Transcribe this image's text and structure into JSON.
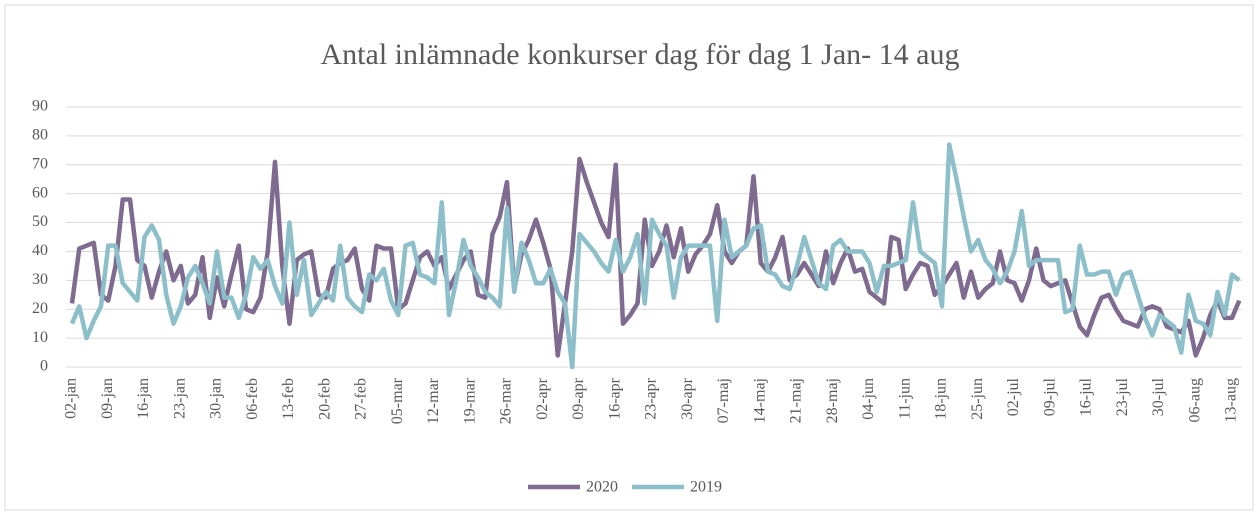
{
  "chart_data": {
    "type": "line",
    "title": "Antal inlämnade konkurser dag för dag 1 Jan- 14 aug",
    "categories": [
      "02-jan",
      null,
      null,
      null,
      null,
      "09-jan",
      null,
      null,
      null,
      null,
      "16-jan",
      null,
      null,
      null,
      null,
      "23-jan",
      null,
      null,
      null,
      null,
      "30-jan",
      null,
      null,
      null,
      null,
      "06-feb",
      null,
      null,
      null,
      null,
      "13-feb",
      null,
      null,
      null,
      null,
      "20-feb",
      null,
      null,
      null,
      null,
      "27-feb",
      null,
      null,
      null,
      null,
      "05-mar",
      null,
      null,
      null,
      null,
      "12-mar",
      null,
      null,
      null,
      null,
      "19-mar",
      null,
      null,
      null,
      null,
      "26-mar",
      null,
      null,
      null,
      null,
      "02-apr",
      null,
      null,
      null,
      null,
      "09-apr",
      null,
      null,
      null,
      null,
      "16-apr",
      null,
      null,
      null,
      null,
      "23-apr",
      null,
      null,
      null,
      null,
      "30-apr",
      null,
      null,
      null,
      null,
      "07-maj",
      null,
      null,
      null,
      null,
      "14-maj",
      null,
      null,
      null,
      null,
      "21-maj",
      null,
      null,
      null,
      null,
      "28-maj",
      null,
      null,
      null,
      null,
      "04-jun",
      null,
      null,
      null,
      null,
      "11-jun",
      null,
      null,
      null,
      null,
      "18-jun",
      null,
      null,
      null,
      null,
      "25-jun",
      null,
      null,
      null,
      null,
      "02-jul",
      null,
      null,
      null,
      null,
      "09-jul",
      null,
      null,
      null,
      null,
      "16-jul",
      null,
      null,
      null,
      null,
      "23-jul",
      null,
      null,
      null,
      null,
      "30-jul",
      null,
      null,
      null,
      null,
      "06-aug",
      null,
      null,
      null,
      null,
      "13-aug",
      null
    ],
    "series": [
      {
        "name": "2020",
        "color": "#7f6a90",
        "values": [
          22,
          41,
          42,
          43,
          25,
          23,
          35,
          58,
          58,
          37,
          35,
          24,
          33,
          40,
          30,
          35,
          22,
          25,
          38,
          17,
          31,
          21,
          32,
          42,
          20,
          19,
          24,
          40,
          71,
          35,
          15,
          37,
          39,
          40,
          25,
          24,
          34,
          36,
          37,
          41,
          27,
          23,
          42,
          41,
          41,
          20,
          22,
          30,
          38,
          40,
          35,
          38,
          27,
          32,
          37,
          40,
          25,
          24,
          46,
          52,
          64,
          27,
          39,
          44,
          51,
          43,
          34,
          4,
          22,
          40,
          72,
          64,
          57,
          50,
          45,
          70,
          15,
          18,
          22,
          51,
          35,
          40,
          49,
          38,
          48,
          33,
          39,
          42,
          46,
          56,
          40,
          36,
          40,
          42,
          66,
          36,
          33,
          38,
          45,
          30,
          32,
          36,
          32,
          28,
          40,
          29,
          36,
          41,
          33,
          34,
          26,
          24,
          22,
          45,
          44,
          27,
          32,
          36,
          35,
          25,
          28,
          32,
          36,
          24,
          33,
          24,
          27,
          29,
          40,
          30,
          29,
          23,
          30,
          41,
          30,
          28,
          29,
          30,
          22,
          14,
          11,
          18,
          24,
          25,
          20,
          16,
          15,
          14,
          20,
          21,
          20,
          14,
          13,
          12,
          16,
          4,
          10,
          18,
          23,
          17,
          17,
          23
        ]
      },
      {
        "name": "2019",
        "color": "#8cbfc9",
        "values": [
          15,
          21,
          10,
          16,
          21,
          42,
          42,
          29,
          26,
          23,
          45,
          49,
          44,
          25,
          15,
          21,
          31,
          35,
          29,
          22,
          40,
          24,
          24,
          17,
          25,
          38,
          34,
          37,
          28,
          22,
          50,
          25,
          37,
          18,
          22,
          26,
          23,
          42,
          24,
          21,
          19,
          32,
          30,
          34,
          23,
          18,
          42,
          43,
          32,
          31,
          29,
          57,
          18,
          30,
          44,
          35,
          31,
          26,
          24,
          21,
          55,
          26,
          43,
          37,
          29,
          29,
          34,
          26,
          22,
          0,
          46,
          43,
          40,
          36,
          33,
          44,
          33,
          38,
          46,
          22,
          51,
          46,
          42,
          24,
          38,
          42,
          42,
          42,
          42,
          16,
          51,
          38,
          40,
          42,
          48,
          49,
          33,
          32,
          28,
          27,
          35,
          45,
          37,
          29,
          27,
          42,
          44,
          40,
          40,
          40,
          36,
          26,
          35,
          35,
          36,
          37,
          57,
          40,
          38,
          36,
          21,
          77,
          65,
          52,
          40,
          44,
          37,
          34,
          29,
          33,
          40,
          54,
          35,
          37,
          37,
          37,
          37,
          19,
          20,
          42,
          32,
          32,
          33,
          33,
          25,
          32,
          33,
          25,
          17,
          11,
          18,
          16,
          14,
          5,
          25,
          16,
          15,
          11,
          26,
          18,
          32,
          30
        ]
      }
    ],
    "ylim": [
      0,
      90
    ],
    "yticks": [
      0,
      10,
      20,
      30,
      40,
      50,
      60,
      70,
      80,
      90
    ],
    "grid": true,
    "legend": "bottom"
  }
}
